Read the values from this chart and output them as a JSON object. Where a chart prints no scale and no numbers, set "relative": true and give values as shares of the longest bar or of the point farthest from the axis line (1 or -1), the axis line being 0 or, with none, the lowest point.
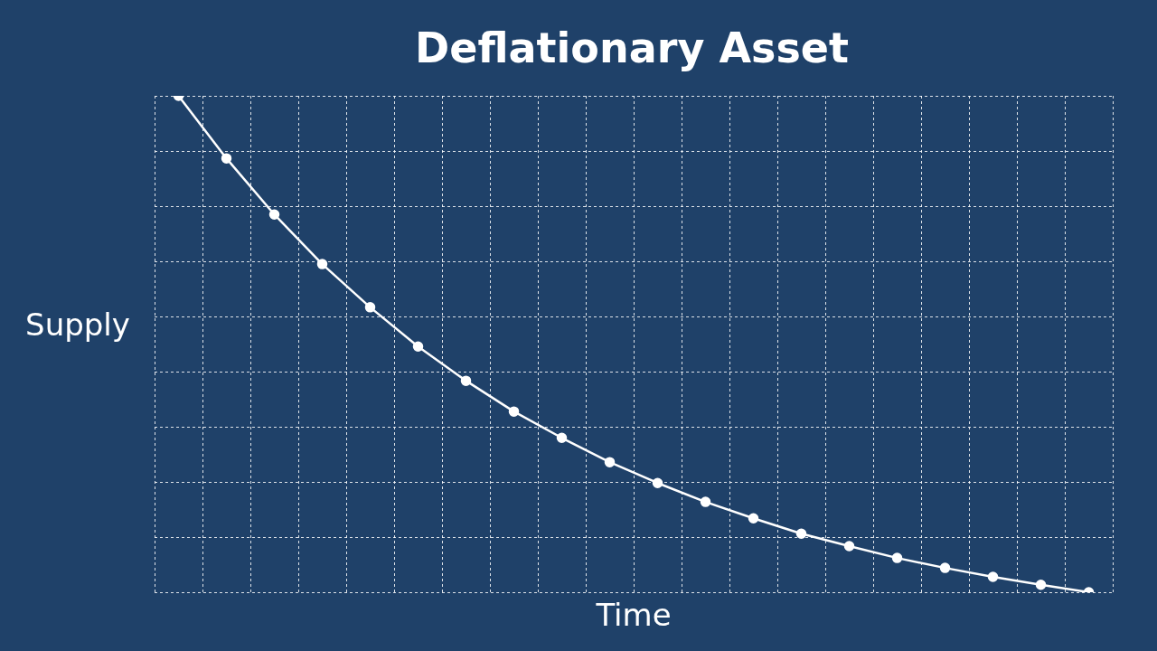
{
  "chart_data": {
    "type": "line",
    "title": "Deflationary Asset",
    "xlabel": "Time",
    "ylabel": "Supply",
    "relative": true,
    "categories": [
      null,
      null,
      null,
      null,
      null,
      null,
      null,
      null,
      null,
      null,
      null,
      null,
      null,
      null,
      null,
      null,
      null,
      null,
      null,
      null
    ],
    "series": [
      {
        "color": "#ffffff",
        "values": [
          1,
          0.874,
          0.761,
          0.661,
          0.574,
          0.495,
          0.426,
          0.364,
          0.311,
          0.262,
          0.22,
          0.182,
          0.149,
          0.118,
          0.093,
          0.069,
          0.049,
          0.031,
          0.015,
          0
        ]
      }
    ],
    "grid": true,
    "legend": false,
    "marker": "circle",
    "line_style": "solid"
  }
}
